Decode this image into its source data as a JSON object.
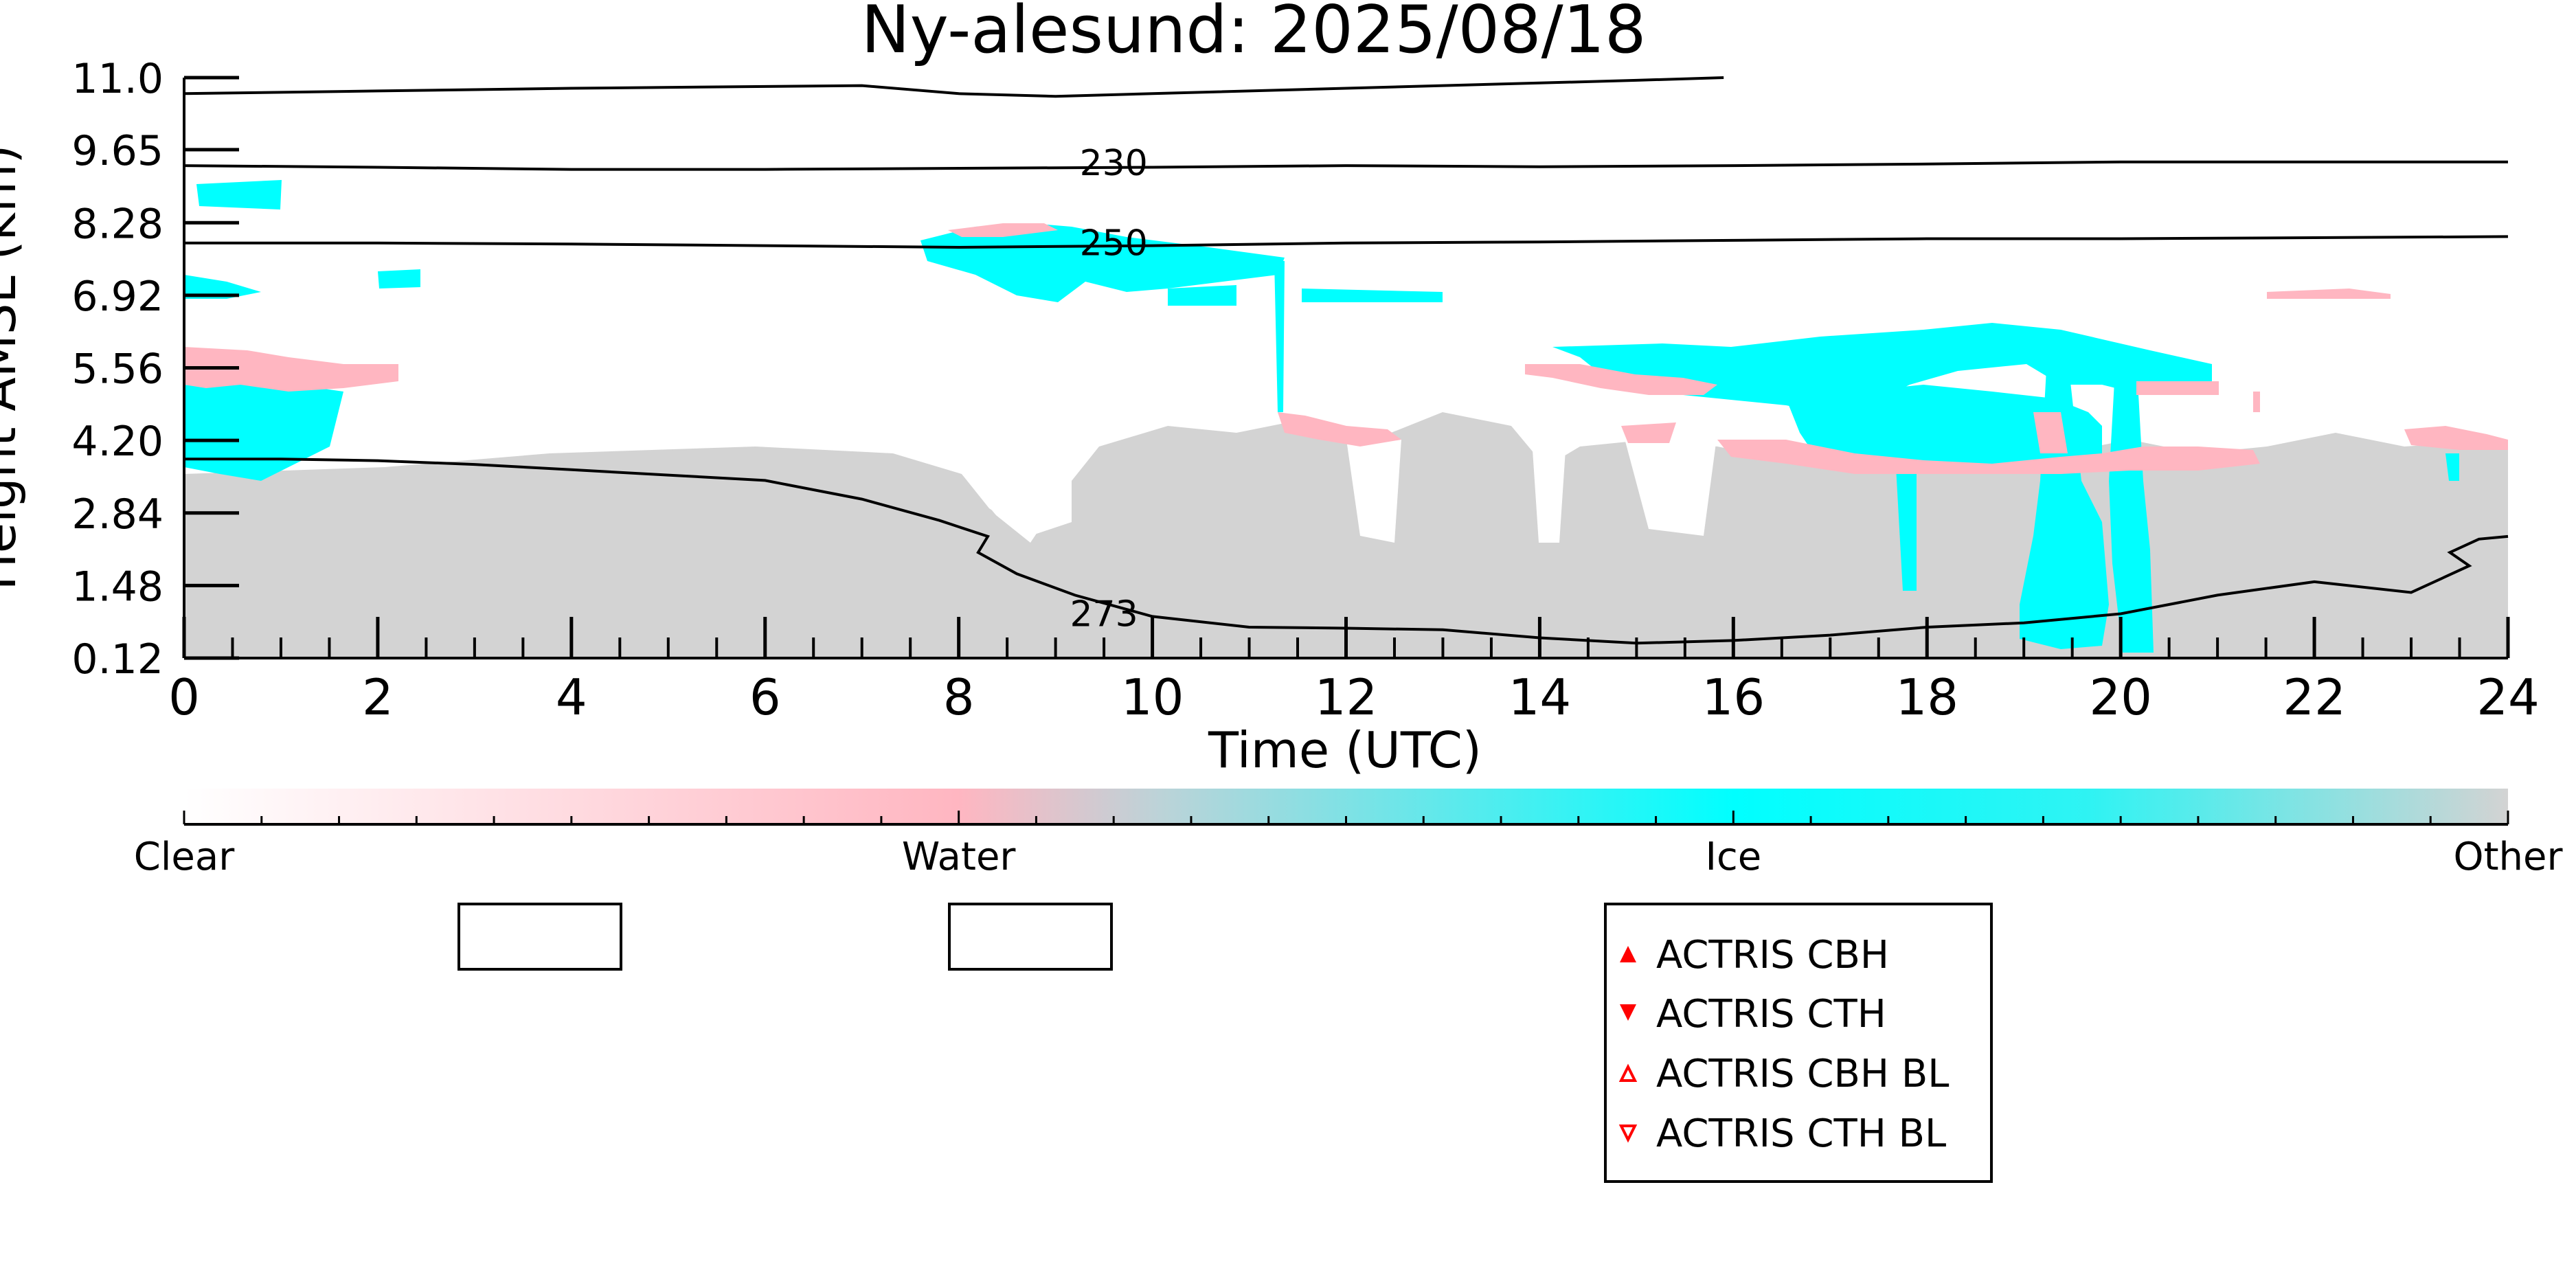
{
  "chart_data": {
    "type": "heatmap",
    "title": "Ny-alesund: 2025/08/18",
    "xlabel": "Time (UTC)",
    "ylabel": "Height AMSL (km)",
    "xlim": [
      0,
      24
    ],
    "ylim": [
      0.12,
      11.0
    ],
    "x_ticks": [
      "0",
      "2",
      "4",
      "6",
      "8",
      "10",
      "12",
      "14",
      "16",
      "18",
      "20",
      "22",
      "24"
    ],
    "y_ticks": [
      "0.12",
      "1.48",
      "2.84",
      "4.20",
      "5.56",
      "6.92",
      "8.28",
      "9.65",
      "11.0"
    ],
    "classes": [
      {
        "name": "Clear",
        "color": "#ffffff"
      },
      {
        "name": "Water",
        "color": "#ffb6c1"
      },
      {
        "name": "Ice",
        "color": "#00ffff"
      },
      {
        "name": "Other",
        "color": "#d3d3d3"
      }
    ],
    "colorbar_labels": [
      "Clear",
      "Water",
      "Ice",
      "Other"
    ],
    "contours": [
      {
        "label": "",
        "label_position": null,
        "points": [
          [
            0,
            10.7
          ],
          [
            2,
            10.75
          ],
          [
            4,
            10.8
          ],
          [
            7,
            10.85
          ],
          [
            8,
            10.7
          ],
          [
            9,
            10.65
          ],
          [
            10,
            10.7
          ],
          [
            12,
            10.8
          ],
          [
            14,
            10.9
          ],
          [
            15,
            10.95
          ],
          [
            15.9,
            11.0
          ]
        ]
      },
      {
        "label": "230",
        "label_position": [
          9.6,
          9.3
        ],
        "points": [
          [
            0,
            9.35
          ],
          [
            2,
            9.32
          ],
          [
            4,
            9.28
          ],
          [
            6,
            9.28
          ],
          [
            8,
            9.3
          ],
          [
            10,
            9.32
          ],
          [
            12,
            9.35
          ],
          [
            14,
            9.33
          ],
          [
            16,
            9.35
          ],
          [
            18,
            9.38
          ],
          [
            20,
            9.42
          ],
          [
            22,
            9.42
          ],
          [
            24,
            9.42
          ]
        ]
      },
      {
        "label": "250",
        "label_position": [
          9.6,
          7.8
        ],
        "points": [
          [
            0,
            7.9
          ],
          [
            2,
            7.9
          ],
          [
            4,
            7.88
          ],
          [
            6,
            7.85
          ],
          [
            8,
            7.82
          ],
          [
            10,
            7.85
          ],
          [
            12,
            7.9
          ],
          [
            14,
            7.92
          ],
          [
            16,
            7.95
          ],
          [
            18,
            7.98
          ],
          [
            20,
            7.98
          ],
          [
            22,
            8.0
          ],
          [
            24,
            8.02
          ]
        ]
      },
      {
        "label": "273",
        "label_position": [
          9.5,
          0.85
        ],
        "points": [
          [
            0,
            3.85
          ],
          [
            1,
            3.85
          ],
          [
            2,
            3.82
          ],
          [
            3,
            3.75
          ],
          [
            4,
            3.65
          ],
          [
            5,
            3.55
          ],
          [
            6,
            3.45
          ],
          [
            7,
            3.1
          ],
          [
            7.8,
            2.7
          ],
          [
            8.3,
            2.4
          ],
          [
            8.2,
            2.1
          ],
          [
            8.6,
            1.7
          ],
          [
            9.2,
            1.3
          ],
          [
            10,
            0.9
          ],
          [
            11,
            0.7
          ],
          [
            12,
            0.68
          ],
          [
            13,
            0.65
          ],
          [
            14,
            0.5
          ],
          [
            15,
            0.4
          ],
          [
            16,
            0.45
          ],
          [
            17,
            0.55
          ],
          [
            18,
            0.7
          ],
          [
            19,
            0.78
          ],
          [
            20,
            0.95
          ],
          [
            21,
            1.3
          ],
          [
            22,
            1.55
          ],
          [
            23,
            1.35
          ],
          [
            23.6,
            1.85
          ],
          [
            23.4,
            2.1
          ],
          [
            23.7,
            2.35
          ],
          [
            24,
            2.4
          ]
        ]
      }
    ],
    "legend": {
      "placement": "bottom-center",
      "entries": [
        {
          "label": "ACTRIS CBH",
          "marker": "triangle-up-filled",
          "color": "#ff0000"
        },
        {
          "label": "ACTRIS CTH",
          "marker": "triangle-down-filled",
          "color": "#ff0000"
        },
        {
          "label": "ACTRIS CBH BL",
          "marker": "triangle-up-open",
          "color": "#ff0000"
        },
        {
          "label": "ACTRIS CTH BL",
          "marker": "triangle-down-open",
          "color": "#ff0000"
        }
      ]
    },
    "empty_legend_boxes": 2
  }
}
